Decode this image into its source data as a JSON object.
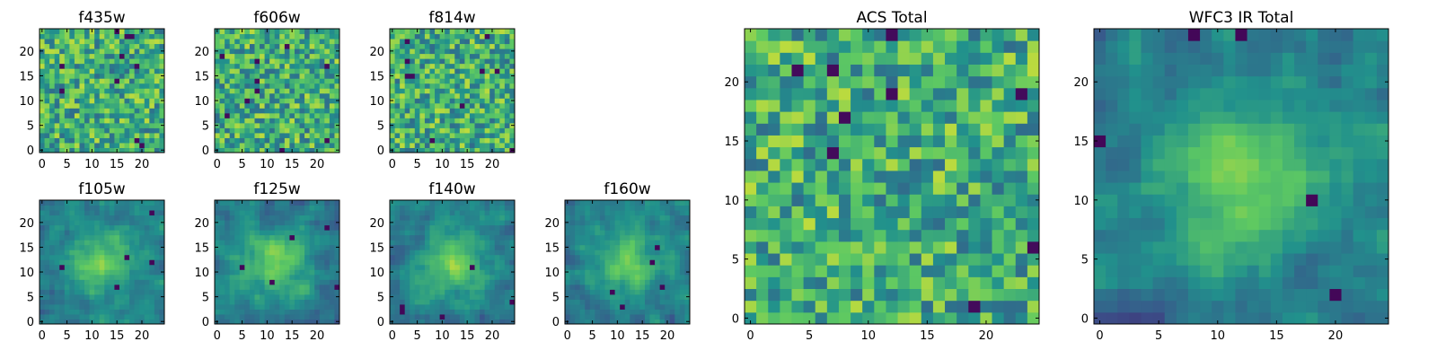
{
  "colormap": [
    "#440154",
    "#3b528b",
    "#21918c",
    "#5ec962",
    "#fde725"
  ],
  "chart_data": [
    {
      "type": "heatmap",
      "title": "f435w",
      "grid_size": 25,
      "xticks": [
        "0",
        "5",
        "10",
        "15",
        "20"
      ],
      "yticks": [
        "0",
        "5",
        "10",
        "15",
        "20"
      ],
      "pattern": "noise",
      "seed": 11
    },
    {
      "type": "heatmap",
      "title": "f606w",
      "grid_size": 25,
      "xticks": [
        "0",
        "5",
        "10",
        "15",
        "20"
      ],
      "yticks": [
        "0",
        "5",
        "10",
        "15",
        "20"
      ],
      "pattern": "noise",
      "seed": 23
    },
    {
      "type": "heatmap",
      "title": "f814w",
      "grid_size": 25,
      "xticks": [
        "0",
        "5",
        "10",
        "15",
        "20"
      ],
      "yticks": [
        "0",
        "5",
        "10",
        "15",
        "20"
      ],
      "pattern": "noise",
      "seed": 37
    },
    {
      "type": "heatmap",
      "title": "f105w",
      "grid_size": 25,
      "xticks": [
        "0",
        "5",
        "10",
        "15",
        "20"
      ],
      "yticks": [
        "0",
        "5",
        "10",
        "15",
        "20"
      ],
      "pattern": "blob",
      "seed": 41
    },
    {
      "type": "heatmap",
      "title": "f125w",
      "grid_size": 25,
      "xticks": [
        "0",
        "5",
        "10",
        "15",
        "20"
      ],
      "yticks": [
        "0",
        "5",
        "10",
        "15",
        "20"
      ],
      "pattern": "blob",
      "seed": 53
    },
    {
      "type": "heatmap",
      "title": "f140w",
      "grid_size": 25,
      "xticks": [
        "0",
        "5",
        "10",
        "15",
        "20"
      ],
      "yticks": [
        "0",
        "5",
        "10",
        "15",
        "20"
      ],
      "pattern": "blob",
      "seed": 67
    },
    {
      "type": "heatmap",
      "title": "f160w",
      "grid_size": 25,
      "xticks": [
        "0",
        "5",
        "10",
        "15",
        "20"
      ],
      "yticks": [
        "0",
        "5",
        "10",
        "15",
        "20"
      ],
      "pattern": "blob",
      "seed": 79
    },
    {
      "type": "heatmap",
      "title": "ACS Total",
      "grid_size": 25,
      "xticks": [
        "0",
        "5",
        "10",
        "15",
        "20"
      ],
      "yticks": [
        "0",
        "5",
        "10",
        "15",
        "20"
      ],
      "pattern": "noise",
      "seed": 83
    },
    {
      "type": "heatmap",
      "title": "WFC3 IR Total",
      "grid_size": 25,
      "xticks": [
        "0",
        "5",
        "10",
        "15",
        "20"
      ],
      "yticks": [
        "0",
        "5",
        "10",
        "15",
        "20"
      ],
      "pattern": "blob",
      "seed": 97
    }
  ]
}
